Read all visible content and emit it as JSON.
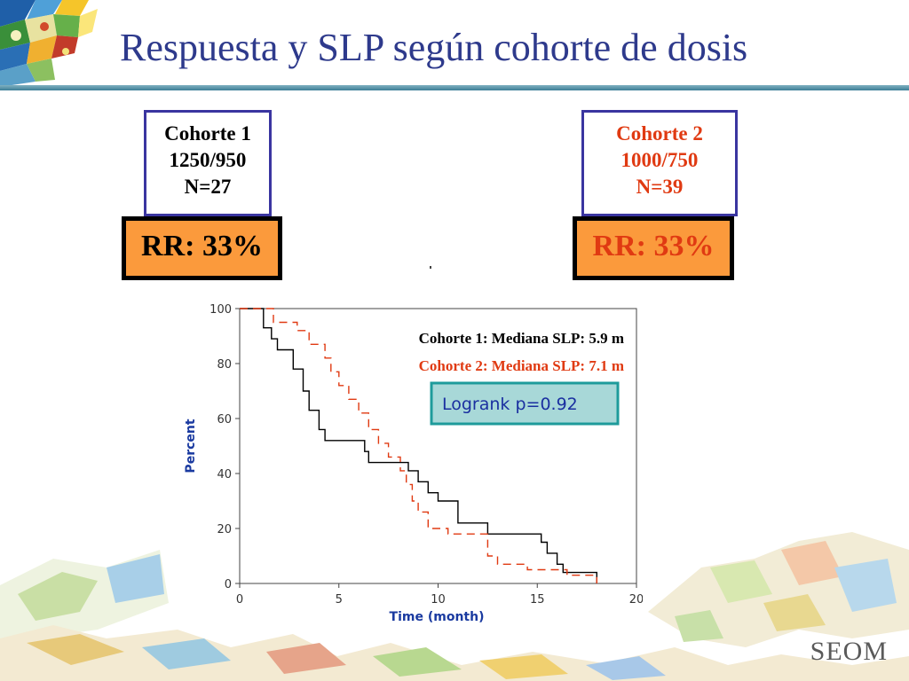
{
  "title": "Respuesta y SLP según cohorte de dosis",
  "cohort1": {
    "name": "Cohorte 1",
    "dose": "1250/950",
    "n": "N=27",
    "rr": "RR: 33%",
    "color": "#000000"
  },
  "cohort2": {
    "name": "Cohorte 2",
    "dose": "1000/750",
    "n": "N=39",
    "rr": "RR: 33%",
    "color": "#e03a12"
  },
  "logo_text": "SEOM",
  "colors": {
    "title": "#2e3a8c",
    "box_border": "#3a35a0",
    "rr_fill": "#fb9a3c",
    "logrank_fill": "#a8d8d8",
    "logrank_border": "#1e9b9b"
  },
  "chart_data": {
    "type": "line",
    "subtype": "kaplan-meier step",
    "xlabel": "Time (month)",
    "ylabel": "Percent",
    "xlim": [
      0,
      20
    ],
    "ylim": [
      0,
      100
    ],
    "xticks": [
      0,
      5,
      10,
      15,
      20
    ],
    "yticks": [
      0,
      20,
      40,
      60,
      80,
      100
    ],
    "annotations": {
      "median1": "Cohorte 1: Mediana SLP: 5.9 m",
      "median2": "Cohorte 2: Mediana SLP: 7.1 m",
      "logrank": "Logrank p=0.92"
    },
    "series": [
      {
        "name": "Cohorte 1",
        "color": "#000000",
        "dash": false,
        "points": [
          [
            0,
            100
          ],
          [
            1.2,
            100
          ],
          [
            1.2,
            93
          ],
          [
            1.6,
            93
          ],
          [
            1.6,
            89
          ],
          [
            1.9,
            89
          ],
          [
            1.9,
            85
          ],
          [
            2.7,
            85
          ],
          [
            2.7,
            78
          ],
          [
            3.2,
            78
          ],
          [
            3.2,
            70
          ],
          [
            3.5,
            70
          ],
          [
            3.5,
            63
          ],
          [
            4.0,
            63
          ],
          [
            4.0,
            56
          ],
          [
            4.3,
            56
          ],
          [
            4.3,
            52
          ],
          [
            6.3,
            52
          ],
          [
            6.3,
            48
          ],
          [
            6.5,
            48
          ],
          [
            6.5,
            44
          ],
          [
            7.0,
            44
          ],
          [
            7.0,
            44
          ],
          [
            8.5,
            44
          ],
          [
            8.5,
            41
          ],
          [
            9.0,
            41
          ],
          [
            9.0,
            37
          ],
          [
            9.5,
            37
          ],
          [
            9.5,
            33
          ],
          [
            10.0,
            33
          ],
          [
            10.0,
            30
          ],
          [
            11.0,
            30
          ],
          [
            11.0,
            22
          ],
          [
            12.5,
            22
          ],
          [
            12.5,
            18
          ],
          [
            15.2,
            18
          ],
          [
            15.2,
            15
          ],
          [
            15.5,
            15
          ],
          [
            15.5,
            11
          ],
          [
            16.0,
            11
          ],
          [
            16.0,
            7
          ],
          [
            16.3,
            7
          ],
          [
            16.3,
            4
          ],
          [
            18.0,
            4
          ],
          [
            18.0,
            0
          ]
        ]
      },
      {
        "name": "Cohorte 2",
        "color": "#e03a12",
        "dash": true,
        "points": [
          [
            0,
            100
          ],
          [
            1.7,
            100
          ],
          [
            1.7,
            95
          ],
          [
            2.9,
            95
          ],
          [
            2.9,
            92
          ],
          [
            3.5,
            92
          ],
          [
            3.5,
            87
          ],
          [
            4.3,
            87
          ],
          [
            4.3,
            82
          ],
          [
            4.6,
            82
          ],
          [
            4.6,
            77
          ],
          [
            5.0,
            77
          ],
          [
            5.0,
            72
          ],
          [
            5.5,
            72
          ],
          [
            5.5,
            67
          ],
          [
            6.0,
            67
          ],
          [
            6.0,
            62
          ],
          [
            6.5,
            62
          ],
          [
            6.5,
            56
          ],
          [
            7.0,
            56
          ],
          [
            7.0,
            51
          ],
          [
            7.5,
            51
          ],
          [
            7.5,
            46
          ],
          [
            8.1,
            46
          ],
          [
            8.1,
            41
          ],
          [
            8.4,
            41
          ],
          [
            8.4,
            36
          ],
          [
            8.7,
            36
          ],
          [
            8.7,
            30
          ],
          [
            9.0,
            30
          ],
          [
            9.0,
            26
          ],
          [
            9.5,
            26
          ],
          [
            9.5,
            20
          ],
          [
            10.5,
            20
          ],
          [
            10.5,
            18
          ],
          [
            12.5,
            18
          ],
          [
            12.5,
            10
          ],
          [
            13.0,
            10
          ],
          [
            13.0,
            7
          ],
          [
            14.5,
            7
          ],
          [
            14.5,
            5
          ],
          [
            16.5,
            5
          ],
          [
            16.5,
            3
          ],
          [
            18.0,
            3
          ],
          [
            18.0,
            0
          ]
        ]
      }
    ]
  }
}
